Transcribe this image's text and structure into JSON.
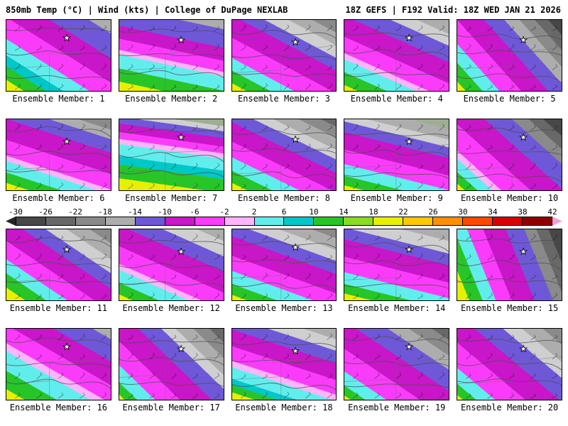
{
  "header": {
    "left": "850mb Temp (°C) | Wind (kts) | College of DuPage NEXLAB",
    "right": "18Z GEFS | F192 Valid: 18Z WED JAN 21 2026"
  },
  "colorbar": {
    "tick_labels": [
      "-30",
      "-26",
      "-22",
      "-18",
      "-14",
      "-10",
      "-6",
      "-2",
      "2",
      "6",
      "10",
      "14",
      "18",
      "22",
      "26",
      "30",
      "34",
      "38",
      "42"
    ],
    "segments": [
      "#474747",
      "#686868",
      "#8a8a8a",
      "#adadad",
      "#6f58d8",
      "#c816c8",
      "#fa3cfa",
      "#ffb4fb",
      "#62eded",
      "#00c8c8",
      "#28c528",
      "#8adc20",
      "#e8f000",
      "#ffc800",
      "#ff9000",
      "#ff4800",
      "#d80000",
      "#900000"
    ],
    "left_arrow": "#262626",
    "right_arrow": "#f2a0cf"
  },
  "members": [
    {
      "label": "Ensemble Member: 1",
      "angle": 212,
      "stops": [
        [
          "#adadad",
          10
        ],
        [
          "#6f58d8",
          28
        ],
        [
          "#c816c8",
          46
        ],
        [
          "#fa3cfa",
          62
        ],
        [
          "#62eded",
          74
        ],
        [
          "#00c8c8",
          82
        ],
        [
          "#28c528",
          92
        ],
        [
          "#e8f000",
          100
        ]
      ]
    },
    {
      "label": "Ensemble Member: 2",
      "angle": 192,
      "stops": [
        [
          "#adadad",
          10
        ],
        [
          "#6f58d8",
          30
        ],
        [
          "#c816c8",
          44
        ],
        [
          "#fa3cfa",
          56
        ],
        [
          "#ffb4fb",
          61
        ],
        [
          "#62eded",
          76
        ],
        [
          "#28c528",
          90
        ],
        [
          "#e8f000",
          100
        ]
      ]
    },
    {
      "label": "Ensemble Member: 3",
      "angle": 208,
      "stops": [
        [
          "#8a8a8a",
          10
        ],
        [
          "#adadad",
          20
        ],
        [
          "#cfcfcf",
          30
        ],
        [
          "#6f58d8",
          40
        ],
        [
          "#c816c8",
          58
        ],
        [
          "#fa3cfa",
          74
        ],
        [
          "#62eded",
          84
        ],
        [
          "#28c528",
          94
        ],
        [
          "#e8f000",
          100
        ]
      ]
    },
    {
      "label": "Ensemble Member: 4",
      "angle": 204,
      "stops": [
        [
          "#adadad",
          12
        ],
        [
          "#cfcfcf",
          22
        ],
        [
          "#6f58d8",
          36
        ],
        [
          "#c816c8",
          54
        ],
        [
          "#fa3cfa",
          68
        ],
        [
          "#ffb4fb",
          73
        ],
        [
          "#62eded",
          84
        ],
        [
          "#28c528",
          95
        ],
        [
          "#e8f000",
          100
        ]
      ]
    },
    {
      "label": "Ensemble Member: 5",
      "angle": 228,
      "stops": [
        [
          "#474747",
          8
        ],
        [
          "#686868",
          16
        ],
        [
          "#8a8a8a",
          25
        ],
        [
          "#adadad",
          34
        ],
        [
          "#6f58d8",
          46
        ],
        [
          "#c816c8",
          62
        ],
        [
          "#fa3cfa",
          75
        ],
        [
          "#62eded",
          85
        ],
        [
          "#28c528",
          95
        ],
        [
          "#e8f000",
          100
        ]
      ]
    },
    {
      "label": "Ensemble Member: 6",
      "angle": 198,
      "stops": [
        [
          "#8a8a8a",
          10
        ],
        [
          "#adadad",
          19
        ],
        [
          "#6f58d8",
          32
        ],
        [
          "#c816c8",
          52
        ],
        [
          "#fa3cfa",
          67
        ],
        [
          "#ffb4fb",
          72
        ],
        [
          "#62eded",
          83
        ],
        [
          "#28c528",
          93
        ],
        [
          "#e8f000",
          100
        ]
      ]
    },
    {
      "label": "Ensemble Member: 7",
      "angle": 188,
      "stops": [
        [
          "#9fae92",
          8
        ],
        [
          "#cfcfcf",
          14
        ],
        [
          "#6f58d8",
          22
        ],
        [
          "#c816c8",
          32
        ],
        [
          "#fa3cfa",
          40
        ],
        [
          "#ffb4fb",
          46
        ],
        [
          "#62eded",
          60
        ],
        [
          "#00c8c8",
          70
        ],
        [
          "#28c528",
          86
        ],
        [
          "#e8f000",
          100
        ]
      ]
    },
    {
      "label": "Ensemble Member: 8",
      "angle": 206,
      "stops": [
        [
          "#686868",
          6
        ],
        [
          "#8a8a8a",
          15
        ],
        [
          "#adadad",
          25
        ],
        [
          "#cfcfcf",
          33
        ],
        [
          "#6f58d8",
          44
        ],
        [
          "#c816c8",
          60
        ],
        [
          "#fa3cfa",
          73
        ],
        [
          "#62eded",
          84
        ],
        [
          "#28c528",
          94
        ],
        [
          "#e8f000",
          100
        ]
      ]
    },
    {
      "label": "Ensemble Member: 9",
      "angle": 194,
      "stops": [
        [
          "#9fae92",
          10
        ],
        [
          "#adadad",
          21
        ],
        [
          "#cfcfcf",
          29
        ],
        [
          "#6f58d8",
          40
        ],
        [
          "#c816c8",
          58
        ],
        [
          "#fa3cfa",
          73
        ],
        [
          "#62eded",
          85
        ],
        [
          "#28c528",
          95
        ],
        [
          "#e8f000",
          100
        ]
      ]
    },
    {
      "label": "Ensemble Member: 10",
      "angle": 222,
      "stops": [
        [
          "#474747",
          10
        ],
        [
          "#686868",
          18
        ],
        [
          "#8a8a8a",
          27
        ],
        [
          "#6f58d8",
          42
        ],
        [
          "#c816c8",
          60
        ],
        [
          "#fa3cfa",
          76
        ],
        [
          "#ffb4fb",
          81
        ],
        [
          "#62eded",
          89
        ],
        [
          "#28c528",
          96
        ],
        [
          "#e8f000",
          100
        ]
      ]
    },
    {
      "label": "Ensemble Member: 11",
      "angle": 214,
      "stops": [
        [
          "#8a8a8a",
          10
        ],
        [
          "#adadad",
          21
        ],
        [
          "#cfcfcf",
          31
        ],
        [
          "#6f58d8",
          42
        ],
        [
          "#c816c8",
          58
        ],
        [
          "#fa3cfa",
          71
        ],
        [
          "#62eded",
          81
        ],
        [
          "#28c528",
          91
        ],
        [
          "#e8f000",
          100
        ]
      ]
    },
    {
      "label": "Ensemble Member: 12",
      "angle": 204,
      "stops": [
        [
          "#adadad",
          10
        ],
        [
          "#cfcfcf",
          23
        ],
        [
          "#6f58d8",
          36
        ],
        [
          "#c816c8",
          54
        ],
        [
          "#fa3cfa",
          69
        ],
        [
          "#ffb4fb",
          74
        ],
        [
          "#62eded",
          85
        ],
        [
          "#28c528",
          95
        ],
        [
          "#e8f000",
          100
        ]
      ]
    },
    {
      "label": "Ensemble Member: 13",
      "angle": 200,
      "stops": [
        [
          "#8a8a8a",
          8
        ],
        [
          "#adadad",
          19
        ],
        [
          "#cfcfcf",
          29
        ],
        [
          "#6f58d8",
          41
        ],
        [
          "#c816c8",
          59
        ],
        [
          "#fa3cfa",
          73
        ],
        [
          "#62eded",
          85
        ],
        [
          "#28c528",
          95
        ],
        [
          "#e8f000",
          100
        ]
      ]
    },
    {
      "label": "Ensemble Member: 14",
      "angle": 194,
      "stops": [
        [
          "#adadad",
          12
        ],
        [
          "#cfcfcf",
          25
        ],
        [
          "#6f58d8",
          37
        ],
        [
          "#c816c8",
          55
        ],
        [
          "#fa3cfa",
          71
        ],
        [
          "#62eded",
          83
        ],
        [
          "#28c528",
          93
        ],
        [
          "#e8f000",
          100
        ]
      ]
    },
    {
      "label": "Ensemble Member: 15",
      "angle": 248,
      "stops": [
        [
          "#474747",
          10
        ],
        [
          "#686868",
          19
        ],
        [
          "#8a8a8a",
          28
        ],
        [
          "#6f58d8",
          42
        ],
        [
          "#c816c8",
          59
        ],
        [
          "#fa3cfa",
          71
        ],
        [
          "#62eded",
          81
        ],
        [
          "#28c528",
          91
        ],
        [
          "#e8f000",
          100
        ]
      ]
    },
    {
      "label": "Ensemble Member: 16",
      "angle": 210,
      "stops": [
        [
          "#adadad",
          8
        ],
        [
          "#6f58d8",
          25
        ],
        [
          "#c816c8",
          43
        ],
        [
          "#fa3cfa",
          57
        ],
        [
          "#ffb4fb",
          63
        ],
        [
          "#62eded",
          78
        ],
        [
          "#28c528",
          92
        ],
        [
          "#e8f000",
          100
        ]
      ]
    },
    {
      "label": "Ensemble Member: 17",
      "angle": 224,
      "stops": [
        [
          "#686868",
          8
        ],
        [
          "#8a8a8a",
          17
        ],
        [
          "#adadad",
          27
        ],
        [
          "#cfcfcf",
          35
        ],
        [
          "#6f58d8",
          48
        ],
        [
          "#c816c8",
          66
        ],
        [
          "#fa3cfa",
          80
        ],
        [
          "#62eded",
          90
        ],
        [
          "#28c528",
          97
        ],
        [
          "#e8f000",
          100
        ]
      ]
    },
    {
      "label": "Ensemble Member: 18",
      "angle": 198,
      "stops": [
        [
          "#adadad",
          10
        ],
        [
          "#cfcfcf",
          21
        ],
        [
          "#6f58d8",
          33
        ],
        [
          "#c816c8",
          49
        ],
        [
          "#fa3cfa",
          63
        ],
        [
          "#ffb4fb",
          69
        ],
        [
          "#62eded",
          80
        ],
        [
          "#00c8c8",
          86
        ],
        [
          "#28c528",
          93
        ],
        [
          "#e8f000",
          100
        ]
      ]
    },
    {
      "label": "Ensemble Member: 19",
      "angle": 214,
      "stops": [
        [
          "#686868",
          8
        ],
        [
          "#8a8a8a",
          19
        ],
        [
          "#adadad",
          29
        ],
        [
          "#6f58d8",
          44
        ],
        [
          "#c816c8",
          64
        ],
        [
          "#fa3cfa",
          80
        ],
        [
          "#62eded",
          90
        ],
        [
          "#28c528",
          97
        ],
        [
          "#e8f000",
          100
        ]
      ]
    },
    {
      "label": "Ensemble Member: 20",
      "angle": 220,
      "stops": [
        [
          "#8a8a8a",
          10
        ],
        [
          "#adadad",
          21
        ],
        [
          "#cfcfcf",
          31
        ],
        [
          "#6f58d8",
          46
        ],
        [
          "#c816c8",
          64
        ],
        [
          "#fa3cfa",
          80
        ],
        [
          "#62eded",
          90
        ],
        [
          "#28c528",
          97
        ],
        [
          "#e8f000",
          100
        ]
      ]
    }
  ]
}
